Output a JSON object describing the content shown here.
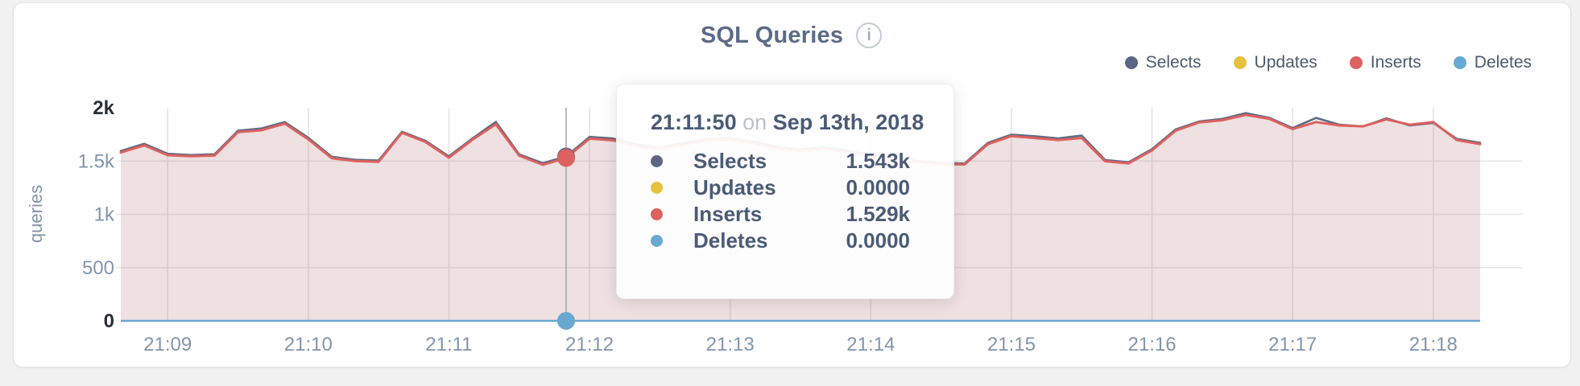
{
  "header": {
    "title": "SQL Queries",
    "info_icon": "i"
  },
  "legend": {
    "items": [
      {
        "label": "Selects",
        "color": "#5b6782"
      },
      {
        "label": "Updates",
        "color": "#e8c13f"
      },
      {
        "label": "Inserts",
        "color": "#dd615e"
      },
      {
        "label": "Deletes",
        "color": "#68a9d3"
      }
    ]
  },
  "tooltip": {
    "time": "21:11:50",
    "conjunction": "on",
    "date": "Sep 13th, 2018",
    "rows": [
      {
        "label": "Selects",
        "value": "1.543k",
        "color": "#5b6782"
      },
      {
        "label": "Updates",
        "value": "0.0000",
        "color": "#e8c13f"
      },
      {
        "label": "Inserts",
        "value": "1.529k",
        "color": "#dd615e"
      },
      {
        "label": "Deletes",
        "value": "0.0000",
        "color": "#68a9d3"
      }
    ]
  },
  "y_axis": {
    "label": "queries",
    "ticks": [
      {
        "label": "0",
        "value": 0,
        "emphasis": true
      },
      {
        "label": "500",
        "value": 500,
        "emphasis": false
      },
      {
        "label": "1k",
        "value": 1000,
        "emphasis": false
      },
      {
        "label": "1.5k",
        "value": 1500,
        "emphasis": false
      },
      {
        "label": "2k",
        "value": 2000,
        "emphasis": true
      }
    ]
  },
  "x_axis": {
    "ticks": [
      "21:09",
      "21:10",
      "21:11",
      "21:12",
      "21:13",
      "21:14",
      "21:15",
      "21:16",
      "21:17",
      "21:18"
    ]
  },
  "chart_data": {
    "type": "area",
    "title": "SQL Queries",
    "ylabel": "queries",
    "ylim": [
      0,
      2000
    ],
    "grid": true,
    "legend_position": "top-right",
    "x": [
      "21:08:40",
      "21:08:50",
      "21:09:00",
      "21:09:10",
      "21:09:20",
      "21:09:30",
      "21:09:40",
      "21:09:50",
      "21:10:00",
      "21:10:10",
      "21:10:20",
      "21:10:30",
      "21:10:40",
      "21:10:50",
      "21:11:00",
      "21:11:10",
      "21:11:20",
      "21:11:30",
      "21:11:40",
      "21:11:50",
      "21:12:00",
      "21:12:10",
      "21:12:20",
      "21:12:30",
      "21:12:40",
      "21:12:50",
      "21:13:00",
      "21:13:10",
      "21:13:20",
      "21:13:30",
      "21:13:40",
      "21:13:50",
      "21:14:00",
      "21:14:10",
      "21:14:20",
      "21:14:30",
      "21:14:40",
      "21:14:50",
      "21:15:00",
      "21:15:10",
      "21:15:20",
      "21:15:30",
      "21:15:40",
      "21:15:50",
      "21:16:00",
      "21:16:10",
      "21:16:20",
      "21:16:30",
      "21:16:40",
      "21:16:50",
      "21:17:00",
      "21:17:10",
      "21:17:20",
      "21:17:30",
      "21:17:40",
      "21:17:50",
      "21:18:00",
      "21:18:10",
      "21:18:20"
    ],
    "series": [
      {
        "name": "Selects",
        "color": "#5d6b85",
        "values": [
          1595,
          1662,
          1568,
          1556,
          1564,
          1784,
          1806,
          1866,
          1719,
          1540,
          1512,
          1505,
          1775,
          1690,
          1545,
          1712,
          1868,
          1562,
          1480,
          1543,
          1727,
          1712,
          1654,
          1628,
          1668,
          1708,
          1718,
          1680,
          1634,
          1608,
          1630,
          1597,
          1560,
          1527,
          1501,
          1483,
          1477,
          1671,
          1748,
          1733,
          1713,
          1739,
          1510,
          1489,
          1612,
          1796,
          1871,
          1896,
          1950,
          1906,
          1810,
          1905,
          1841,
          1824,
          1901,
          1834,
          1858,
          1709,
          1672
        ]
      },
      {
        "name": "Updates",
        "color": "#e8c13f",
        "values": [
          0,
          0,
          0,
          0,
          0,
          0,
          0,
          0,
          0,
          0,
          0,
          0,
          0,
          0,
          0,
          0,
          0,
          0,
          0,
          0,
          0,
          0,
          0,
          0,
          0,
          0,
          0,
          0,
          0,
          0,
          0,
          0,
          0,
          0,
          0,
          0,
          0,
          0,
          0,
          0,
          0,
          0,
          0,
          0,
          0,
          0,
          0,
          0,
          0,
          0,
          0,
          0,
          0,
          0,
          0,
          0,
          0,
          0,
          0
        ]
      },
      {
        "name": "Inserts",
        "color": "#dd615e",
        "values": [
          1580,
          1647,
          1555,
          1545,
          1552,
          1771,
          1789,
          1851,
          1704,
          1527,
          1500,
          1493,
          1765,
          1679,
          1532,
          1700,
          1845,
          1550,
          1465,
          1529,
          1710,
          1694,
          1640,
          1615,
          1655,
          1695,
          1705,
          1668,
          1622,
          1596,
          1618,
          1585,
          1548,
          1515,
          1490,
          1472,
          1468,
          1659,
          1734,
          1716,
          1697,
          1716,
          1498,
          1478,
          1600,
          1784,
          1863,
          1883,
          1933,
          1896,
          1800,
          1866,
          1834,
          1826,
          1891,
          1841,
          1866,
          1697,
          1660
        ]
      },
      {
        "name": "Deletes",
        "color": "#68a9d3",
        "values": [
          0,
          0,
          0,
          0,
          0,
          0,
          0,
          0,
          0,
          0,
          0,
          0,
          0,
          0,
          0,
          0,
          0,
          0,
          0,
          0,
          0,
          0,
          0,
          0,
          0,
          0,
          0,
          0,
          0,
          0,
          0,
          0,
          0,
          0,
          0,
          0,
          0,
          0,
          0,
          0,
          0,
          0,
          0,
          0,
          0,
          0,
          0,
          0,
          0,
          0,
          0,
          0,
          0,
          0,
          0,
          0,
          0,
          0,
          0
        ]
      }
    ],
    "highlight": {
      "x": "21:11:50",
      "index": 19,
      "values": {
        "Selects": 1543,
        "Updates": 0,
        "Inserts": 1529,
        "Deletes": 0
      }
    }
  }
}
